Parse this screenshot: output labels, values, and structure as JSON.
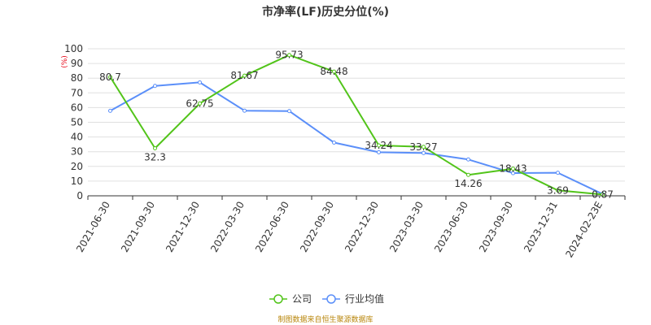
{
  "chart_data": {
    "type": "line",
    "title": "市净率(LF)历史分位(%)",
    "unit_label": "(%)",
    "categories": [
      "2021-06-30",
      "2021-09-30",
      "2021-12-30",
      "2022-03-30",
      "2022-06-30",
      "2022-09-30",
      "2022-12-30",
      "2023-03-30",
      "2023-06-30",
      "2023-09-30",
      "2023-12-31",
      "2024-02-23E"
    ],
    "ylim": [
      0,
      100
    ],
    "yticks": [
      "0",
      "10",
      "20",
      "30",
      "40",
      "50",
      "60",
      "70",
      "80",
      "90",
      "100"
    ],
    "grid": true,
    "legend_position": "bottom-center",
    "series": [
      {
        "name": "公司",
        "color": "#52c41a",
        "values": [
          80.7,
          32.3,
          62.75,
          81.67,
          95.73,
          84.48,
          34.24,
          33.27,
          14.26,
          18.43,
          3.69,
          0.87
        ],
        "labels": [
          "80.7",
          "32.3",
          "62.75",
          "81.67",
          "95.73",
          "84.48",
          "34.24",
          "33.27",
          "14.26",
          "18.43",
          "3.69",
          "0.87"
        ]
      },
      {
        "name": "行业均值",
        "color": "#5b8ff9",
        "values": [
          57.8,
          74.7,
          77.1,
          57.9,
          57.6,
          36.2,
          29.6,
          29.1,
          24.7,
          15.4,
          15.7,
          1.2
        ]
      }
    ],
    "source": "制图数据来自恒生聚源数据库"
  }
}
